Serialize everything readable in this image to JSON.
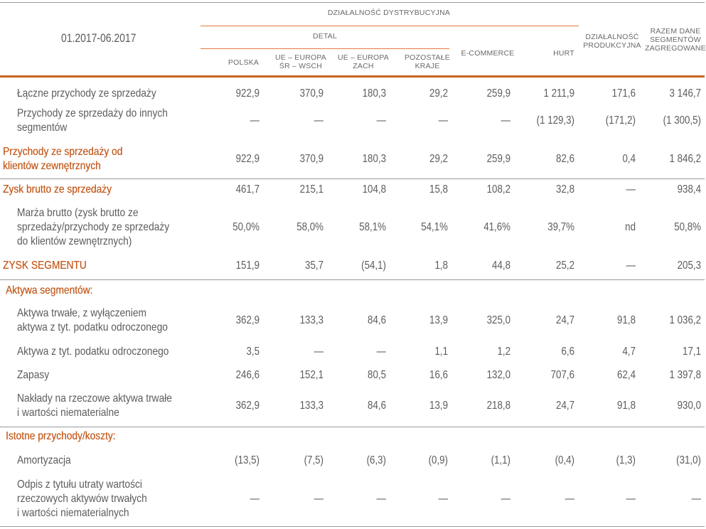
{
  "header": {
    "period": "01.2017-06.2017",
    "group": "DZIAŁALNOŚĆ DYSTRYBUCYJNA",
    "subgroup": "DETAL",
    "columns": [
      {
        "l1": "",
        "l2": "POLSKA"
      },
      {
        "l1": "UE – EUROPA",
        "l2": "ŚR – WSCH"
      },
      {
        "l1": "UE – EUROPA",
        "l2": "ZACH"
      },
      {
        "l1": "POZOSTAŁE",
        "l2": "KRAJE"
      },
      {
        "l1": "",
        "l2": "E-COMMERCE"
      },
      {
        "l1": "",
        "l2": "HURT"
      },
      {
        "l1": "DZIAŁALNOŚĆ",
        "l2": "PRODUKCYJNA"
      },
      {
        "l1": "RAZEM DANE",
        "l2": "SEGMENTÓW",
        "l3": "ZAGREGOWANE"
      }
    ]
  },
  "rows": [
    {
      "label": [
        "Łączne przychody ze sprzedaży"
      ],
      "values": [
        "922,9",
        "370,9",
        "180,3",
        "29,2",
        "259,9",
        "1 211,9",
        "171,6",
        "3 146,7"
      ]
    },
    {
      "label": [
        "Przychody ze sprzedaży do innych",
        "segmentów"
      ],
      "values": [
        "—",
        "—",
        "—",
        "—",
        "—",
        "(1 129,3)",
        "(171,2)",
        "(1 300,5)"
      ]
    },
    {
      "label": [
        "Przychody ze sprzedaży od",
        "klientów zewnętrznych"
      ],
      "values": [
        "922,9",
        "370,9",
        "180,3",
        "29,2",
        "259,9",
        "82,6",
        "0,4",
        "1 846,2"
      ]
    },
    {
      "label": [
        "Zysk brutto ze sprzedaży"
      ],
      "values": [
        "461,7",
        "215,1",
        "104,8",
        "15,8",
        "108,2",
        "32,8",
        "—",
        "938,4"
      ]
    },
    {
      "label": [
        "Marża brutto (zysk brutto ze",
        "sprzedaży/przychody ze sprzedaży",
        "do klientów zewnętrznych)"
      ],
      "values": [
        "50,0%",
        "58,0%",
        "58,1%",
        "54,1%",
        "41,6%",
        "39,7%",
        "nd",
        "50,8%"
      ]
    },
    {
      "label": [
        "ZYSK SEGMENTU"
      ],
      "values": [
        "151,9",
        "35,7",
        "(54,1)",
        "1,8",
        "44,8",
        "25,2",
        "—",
        "205,3"
      ]
    },
    {
      "label": [
        "Aktywa segmentów:"
      ],
      "values": []
    },
    {
      "label": [
        "Aktywa trwałe, z wyłączeniem",
        "aktywa z tyt. podatku odroczonego"
      ],
      "values": [
        "362,9",
        "133,3",
        "84,6",
        "13,9",
        "325,0",
        "24,7",
        "91,8",
        "1 036,2"
      ]
    },
    {
      "label": [
        "Aktywa z tyt. podatku odroczonego"
      ],
      "values": [
        "3,5",
        "—",
        "—",
        "1,1",
        "1,2",
        "6,6",
        "4,7",
        "17,1"
      ]
    },
    {
      "label": [
        "Zapasy"
      ],
      "values": [
        "246,6",
        "152,1",
        "80,5",
        "16,6",
        "132,0",
        "707,6",
        "62,4",
        "1 397,8"
      ]
    },
    {
      "label": [
        "Nakłady na rzeczowe aktywa trwałe",
        "i wartości niematerialne"
      ],
      "values": [
        "362,9",
        "133,3",
        "84,6",
        "13,9",
        "218,8",
        "24,7",
        "91,8",
        "930,0"
      ]
    },
    {
      "label": [
        "Istotne przychody/koszty:"
      ],
      "values": []
    },
    {
      "label": [
        "Amortyzacja"
      ],
      "values": [
        "(13,5)",
        "(7,5)",
        "(6,3)",
        "(0,9)",
        "(1,1)",
        "(0,4)",
        "(1,3)",
        "(31,0)"
      ]
    },
    {
      "label": [
        "Odpis z tytułu utraty wartości",
        "rzeczowych aktywów trwałych",
        "i wartości niematerialnych"
      ],
      "values": [
        "—",
        "—",
        "—",
        "—",
        "—",
        "—",
        "—",
        "—"
      ]
    }
  ]
}
